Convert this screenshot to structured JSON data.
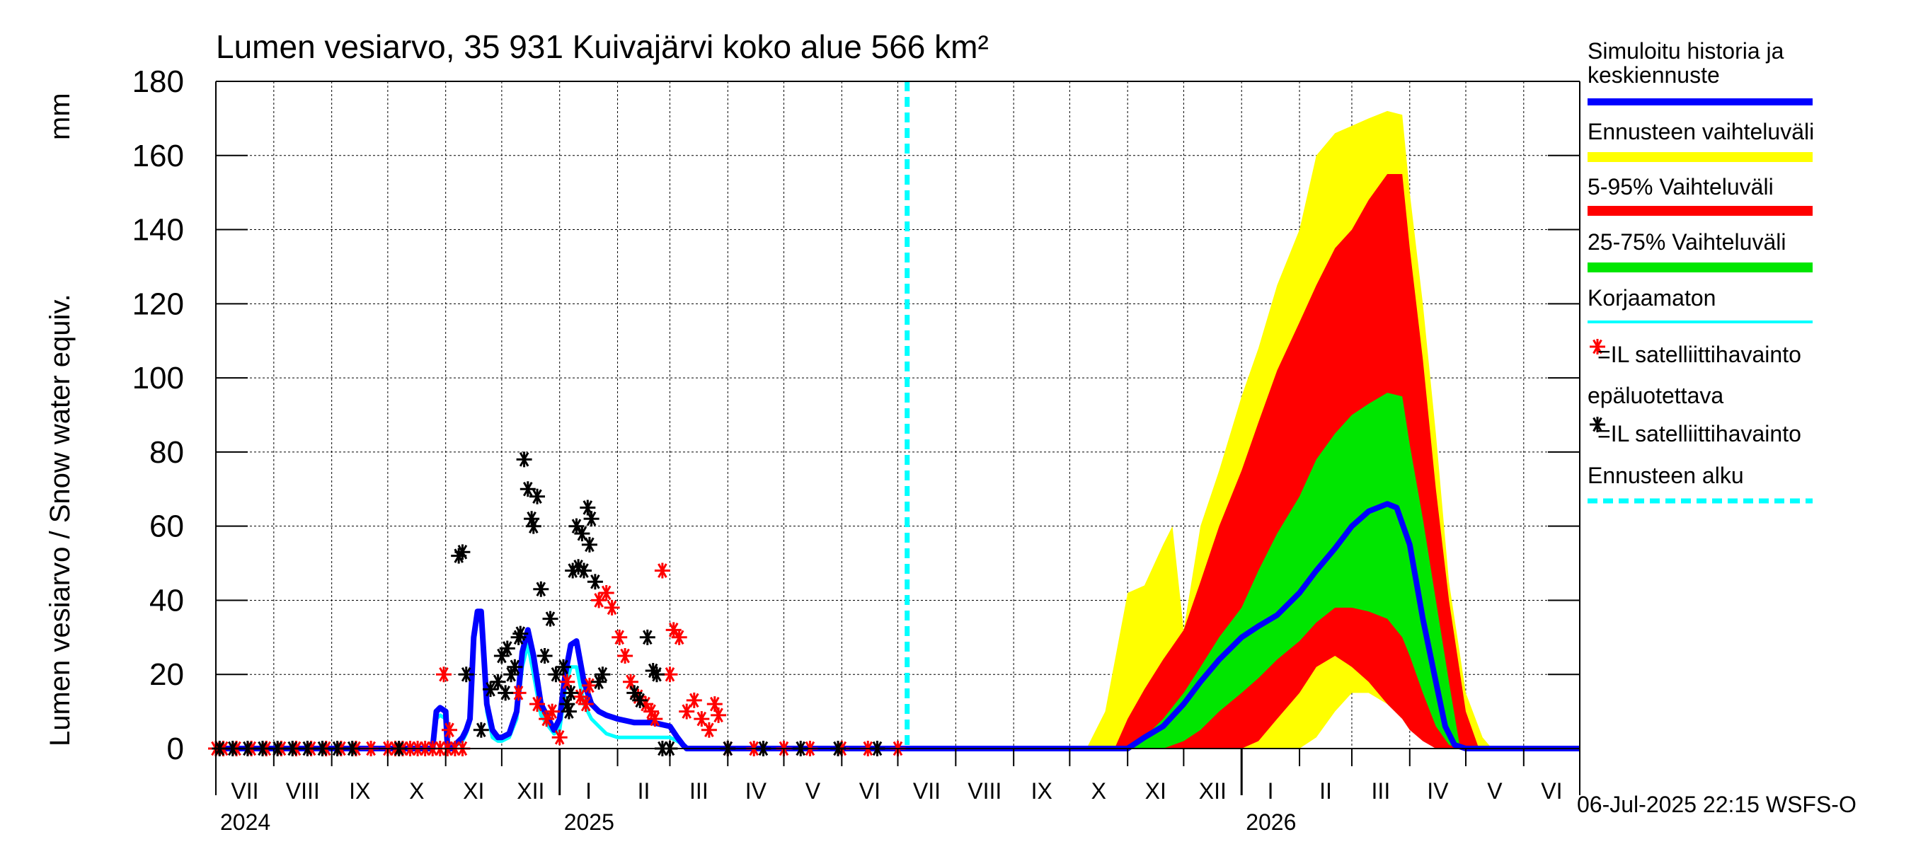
{
  "chart_data": {
    "type": "area",
    "title": "Lumen vesiarvo, 35 931 Kuivajärvi koko alue 566 km²",
    "ylabel": "Lumen vesiarvo / Snow water equiv.",
    "yunit": "mm",
    "ylim": [
      0,
      180
    ],
    "yticks": [
      "0",
      "20",
      "40",
      "60",
      "80",
      "100",
      "120",
      "140",
      "160",
      "180"
    ],
    "xlim": [
      "2024-07-01",
      "2026-07-01"
    ],
    "grid": true,
    "legend_position": "right",
    "months": [
      "VII",
      "VIII",
      "IX",
      "X",
      "XI",
      "XII",
      "I",
      "II",
      "III",
      "IV",
      "V",
      "VI",
      "VII",
      "VIII",
      "IX",
      "X",
      "XI",
      "XII",
      "I",
      "II",
      "III",
      "IV",
      "V",
      "VI"
    ],
    "years": [
      "2024",
      "2025",
      "2026"
    ],
    "forecast_start": "2025-07-06",
    "timestamp": "06-Jul-2025 22:15 WSFS-O",
    "legend": [
      {
        "label": "Simuloitu historia ja keskiennuste",
        "color": "#0000ff",
        "kind": "line"
      },
      {
        "label": "Ennusteen vaihteluväli",
        "color": "#ffff00",
        "kind": "band"
      },
      {
        "label": "5-95% Vaihteluväli",
        "color": "#ff0000",
        "kind": "band"
      },
      {
        "label": "25-75% Vaihteluväli",
        "color": "#00e600",
        "kind": "band"
      },
      {
        "label": "Korjaamaton",
        "color": "#00ffff",
        "kind": "line"
      },
      {
        "label": "=IL satelliittihavainto epäluotettava",
        "color": "#ff0000",
        "kind": "star"
      },
      {
        "label": "=IL satelliittihavainto",
        "color": "#000000",
        "kind": "star"
      },
      {
        "label": "Ennusteen alku",
        "color": "#00ffff",
        "kind": "dash"
      }
    ],
    "series": [
      {
        "name": "Simuloitu historia ja keskiennuste",
        "color": "#0000ff",
        "x": [
          "2024-07-01",
          "2024-10-25",
          "2024-10-27",
          "2024-10-29",
          "2024-11-01",
          "2024-11-02",
          "2024-11-04",
          "2024-11-10",
          "2024-11-12",
          "2024-11-14",
          "2024-11-16",
          "2024-11-18",
          "2024-11-20",
          "2024-11-23",
          "2024-11-26",
          "2024-11-29",
          "2024-12-01",
          "2024-12-05",
          "2024-12-09",
          "2024-12-12",
          "2024-12-15",
          "2024-12-18",
          "2024-12-22",
          "2024-12-26",
          "2024-12-29",
          "2025-01-01",
          "2025-01-04",
          "2025-01-07",
          "2025-01-10",
          "2025-01-14",
          "2025-01-18",
          "2025-01-22",
          "2025-01-26",
          "2025-02-01",
          "2025-02-10",
          "2025-02-20",
          "2025-03-01",
          "2025-03-05",
          "2025-03-08",
          "2025-03-10",
          "2025-07-06",
          "2025-11-01",
          "2025-11-10",
          "2025-11-20",
          "2025-12-01",
          "2025-12-10",
          "2025-12-20",
          "2026-01-01",
          "2026-01-10",
          "2026-01-20",
          "2026-02-01",
          "2026-02-10",
          "2026-02-20",
          "2026-03-01",
          "2026-03-10",
          "2026-03-20",
          "2026-03-25",
          "2026-04-01",
          "2026-04-08",
          "2026-04-15",
          "2026-04-20",
          "2026-04-25",
          "2026-05-01",
          "2026-07-01"
        ],
        "y": [
          0,
          0,
          10,
          11,
          10,
          0,
          0,
          3,
          5,
          8,
          30,
          37,
          37,
          12,
          5,
          3,
          3,
          4,
          10,
          26,
          32,
          25,
          12,
          8,
          5,
          8,
          20,
          28,
          29,
          18,
          12,
          10,
          9,
          8,
          7,
          7,
          6,
          3,
          1,
          0,
          0,
          0,
          3,
          6,
          12,
          18,
          24,
          30,
          33,
          36,
          42,
          48,
          54,
          60,
          64,
          66,
          65,
          55,
          35,
          18,
          6,
          1,
          0,
          0
        ]
      },
      {
        "name": "Korjaamaton",
        "color": "#00ffff",
        "x": [
          "2024-07-01",
          "2024-10-25",
          "2024-10-27",
          "2024-10-29",
          "2024-11-01",
          "2024-11-02",
          "2024-11-04",
          "2024-11-10",
          "2024-11-12",
          "2024-11-14",
          "2024-11-16",
          "2024-11-18",
          "2024-11-20",
          "2024-11-23",
          "2024-11-26",
          "2024-11-29",
          "2024-12-01",
          "2024-12-05",
          "2024-12-09",
          "2024-12-12",
          "2024-12-15",
          "2024-12-18",
          "2024-12-22",
          "2024-12-26",
          "2024-12-29",
          "2025-01-01",
          "2025-01-04",
          "2025-01-07",
          "2025-01-10",
          "2025-01-14",
          "2025-01-18",
          "2025-01-22",
          "2025-01-26",
          "2025-02-01",
          "2025-02-10",
          "2025-02-20",
          "2025-03-01",
          "2025-03-05",
          "2025-03-08",
          "2025-03-10"
        ],
        "y": [
          0,
          0,
          8,
          9,
          8,
          0,
          0,
          2,
          4,
          7,
          28,
          35,
          35,
          10,
          3,
          2,
          2,
          3,
          8,
          22,
          28,
          20,
          9,
          6,
          4,
          5,
          16,
          22,
          22,
          12,
          8,
          6,
          4,
          3,
          3,
          3,
          3,
          2,
          1,
          0
        ]
      }
    ],
    "bands": [
      {
        "name": "Ennusteen vaihteluväli",
        "color": "#ffff00",
        "x": [
          "2025-10-10",
          "2025-10-20",
          "2025-11-01",
          "2025-11-10",
          "2025-11-20",
          "2025-11-25",
          "2025-12-01",
          "2025-12-10",
          "2025-12-20",
          "2026-01-01",
          "2026-01-10",
          "2026-01-20",
          "2026-02-01",
          "2026-02-10",
          "2026-02-20",
          "2026-03-01",
          "2026-03-10",
          "2026-03-20",
          "2026-03-28",
          "2026-04-01",
          "2026-04-08",
          "2026-04-15",
          "2026-04-22",
          "2026-05-01",
          "2026-05-10",
          "2026-05-15"
        ],
        "upper": [
          0,
          10,
          42,
          44,
          55,
          60,
          32,
          60,
          75,
          95,
          108,
          125,
          140,
          160,
          166,
          168,
          170,
          172,
          171,
          150,
          120,
          85,
          45,
          15,
          3,
          0
        ],
        "lower": [
          0,
          0,
          0,
          0,
          0,
          0,
          0,
          0,
          0,
          0,
          0,
          0,
          0,
          3,
          10,
          15,
          15,
          12,
          8,
          5,
          3,
          0,
          0,
          0,
          0,
          0
        ]
      },
      {
        "name": "5-95% Vaihteluväli",
        "color": "#ff0000",
        "x": [
          "2025-10-25",
          "2025-11-01",
          "2025-11-10",
          "2025-11-20",
          "2025-12-01",
          "2025-12-10",
          "2025-12-20",
          "2026-01-01",
          "2026-01-10",
          "2026-01-20",
          "2026-02-01",
          "2026-02-10",
          "2026-02-20",
          "2026-03-01",
          "2026-03-10",
          "2026-03-20",
          "2026-03-28",
          "2026-04-01",
          "2026-04-08",
          "2026-04-15",
          "2026-04-22",
          "2026-05-01",
          "2026-05-08"
        ],
        "upper": [
          0,
          8,
          16,
          24,
          32,
          45,
          60,
          75,
          88,
          102,
          115,
          125,
          135,
          140,
          148,
          155,
          155,
          135,
          105,
          70,
          40,
          10,
          0
        ],
        "lower": [
          0,
          0,
          0,
          0,
          0,
          0,
          0,
          0,
          2,
          8,
          15,
          22,
          25,
          22,
          18,
          12,
          8,
          5,
          2,
          0,
          0,
          0,
          0
        ]
      },
      {
        "name": "25-75% Vaihteluväli",
        "color": "#00e600",
        "x": [
          "2025-11-01",
          "2025-11-10",
          "2025-11-20",
          "2025-12-01",
          "2025-12-10",
          "2025-12-20",
          "2026-01-01",
          "2026-01-10",
          "2026-01-20",
          "2026-02-01",
          "2026-02-10",
          "2026-02-20",
          "2026-03-01",
          "2026-03-10",
          "2026-03-20",
          "2026-03-28",
          "2026-04-01",
          "2026-04-08",
          "2026-04-15",
          "2026-04-22",
          "2026-04-28"
        ],
        "upper": [
          0,
          3,
          8,
          15,
          22,
          30,
          38,
          48,
          58,
          68,
          78,
          85,
          90,
          93,
          96,
          95,
          82,
          62,
          40,
          18,
          0
        ],
        "lower": [
          0,
          0,
          0,
          2,
          5,
          10,
          15,
          19,
          24,
          29,
          34,
          38,
          38,
          37,
          35,
          30,
          25,
          15,
          6,
          1,
          0
        ]
      }
    ],
    "satellite_unreliable": {
      "name": "=IL satelliittihavainto epäluotettava",
      "color": "#ff0000",
      "x": [
        "2024-07-01",
        "2024-07-05",
        "2024-07-12",
        "2024-07-20",
        "2024-07-28",
        "2024-08-05",
        "2024-08-13",
        "2024-08-21",
        "2024-08-29",
        "2024-09-06",
        "2024-09-14",
        "2024-09-22",
        "2024-10-01",
        "2024-10-05",
        "2024-10-09",
        "2024-10-13",
        "2024-10-17",
        "2024-10-21",
        "2024-10-25",
        "2024-10-29",
        "2024-11-02",
        "2024-11-06",
        "2024-11-10",
        "2024-10-31",
        "2024-11-03",
        "2024-12-10",
        "2024-12-20",
        "2024-12-25",
        "2024-12-28",
        "2025-01-01",
        "2025-01-05",
        "2025-01-12",
        "2025-01-15",
        "2025-01-17",
        "2025-01-22",
        "2025-01-26",
        "2025-01-29",
        "2025-02-02",
        "2025-02-05",
        "2025-02-08",
        "2025-02-12",
        "2025-02-16",
        "2025-02-19",
        "2025-02-21",
        "2025-02-25",
        "2025-03-01",
        "2025-03-03",
        "2025-03-06",
        "2025-03-10",
        "2025-03-14",
        "2025-03-18",
        "2025-03-22",
        "2025-03-25",
        "2025-03-27",
        "2025-04-01",
        "2025-04-15",
        "2025-05-01",
        "2025-05-15",
        "2025-06-01",
        "2025-06-15",
        "2025-07-01"
      ],
      "y": [
        0,
        0,
        0,
        0,
        0,
        0,
        0,
        0,
        0,
        0,
        0,
        0,
        0,
        0,
        0,
        0,
        0,
        0,
        0,
        0,
        0,
        0,
        0,
        20,
        5,
        15,
        12,
        8,
        10,
        3,
        18,
        14,
        12,
        17,
        40,
        42,
        38,
        30,
        25,
        18,
        14,
        12,
        10,
        8,
        48,
        20,
        32,
        30,
        10,
        13,
        8,
        5,
        12,
        9,
        0,
        0,
        0,
        0,
        0,
        0,
        0
      ]
    },
    "satellite": {
      "name": "=IL satelliittihavainto",
      "color": "#000000",
      "x": [
        "2024-07-03",
        "2024-07-10",
        "2024-07-18",
        "2024-07-26",
        "2024-08-03",
        "2024-08-11",
        "2024-08-19",
        "2024-08-27",
        "2024-09-04",
        "2024-09-12",
        "2024-10-07",
        "2024-11-08",
        "2024-11-10",
        "2024-11-12",
        "2024-11-20",
        "2024-11-25",
        "2024-11-29",
        "2024-12-01",
        "2024-12-03",
        "2024-12-04",
        "2024-12-06",
        "2024-12-08",
        "2024-12-10",
        "2024-12-11",
        "2024-12-13",
        "2024-12-15",
        "2024-12-17",
        "2024-12-18",
        "2024-12-20",
        "2024-12-22",
        "2024-12-24",
        "2024-12-27",
        "2024-12-30",
        "2025-01-03",
        "2025-01-05",
        "2025-01-06",
        "2025-01-07",
        "2025-01-08",
        "2025-01-10",
        "2025-01-11",
        "2025-01-13",
        "2025-01-14",
        "2025-01-16",
        "2025-01-17",
        "2025-01-18",
        "2025-01-20",
        "2025-01-22",
        "2025-01-24",
        "2025-02-10",
        "2025-02-13",
        "2025-02-17",
        "2025-02-20",
        "2025-02-22",
        "2025-02-25",
        "2025-03-01",
        "2025-04-01",
        "2025-04-20",
        "2025-05-10",
        "2025-05-30",
        "2025-06-20"
      ],
      "y": [
        0,
        0,
        0,
        0,
        0,
        0,
        0,
        0,
        0,
        0,
        0,
        52,
        53,
        20,
        5,
        16,
        18,
        25,
        15,
        27,
        20,
        22,
        30,
        31,
        78,
        70,
        62,
        60,
        68,
        43,
        25,
        35,
        20,
        22,
        12,
        10,
        15,
        48,
        60,
        49,
        58,
        48,
        65,
        55,
        62,
        45,
        18,
        20,
        15,
        13,
        30,
        21,
        20,
        0,
        0,
        0,
        0,
        0,
        0,
        0
      ]
    }
  }
}
